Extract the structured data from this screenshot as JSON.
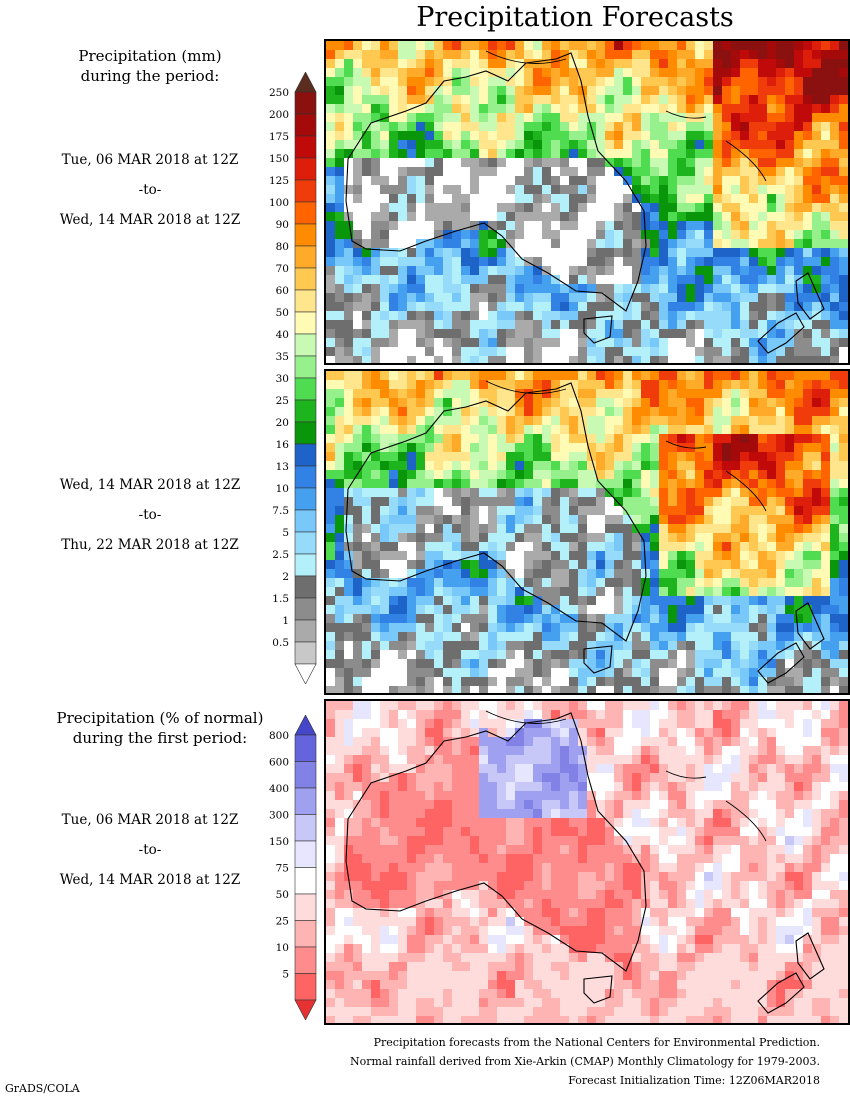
{
  "title": "Precipitation Forecasts",
  "legend_mm": {
    "heading_line1": "Precipitation (mm)",
    "heading_line2": "during the period:",
    "levels": [
      "250",
      "200",
      "175",
      "150",
      "125",
      "100",
      "90",
      "80",
      "70",
      "60",
      "50",
      "40",
      "35",
      "30",
      "25",
      "20",
      "16",
      "13",
      "10",
      "7.5",
      "5",
      "2.5",
      "2",
      "1.5",
      "1",
      "0.5"
    ],
    "colors": [
      "#8b1010",
      "#a50a0a",
      "#c00a0a",
      "#dc1e0a",
      "#f03c0a",
      "#ff6400",
      "#ff8c00",
      "#ffaa28",
      "#ffc850",
      "#ffe68c",
      "#fffab4",
      "#c8fab4",
      "#96f08c",
      "#50dc50",
      "#1eb41e",
      "#0a960a",
      "#1e64c8",
      "#3282e6",
      "#46a0f0",
      "#78c8fa",
      "#96dcfa",
      "#b4f0fa",
      "#6e6e6e",
      "#8c8c8c",
      "#aaaaaa",
      "#c8c8c8"
    ],
    "top_color": "#5a2d1e",
    "bottom_color": "#ffffff"
  },
  "period1": {
    "start": "Tue, 06 MAR 2018 at 12Z",
    "sep": "-to-",
    "end": "Wed, 14 MAR 2018 at 12Z"
  },
  "period2": {
    "start": "Wed, 14 MAR 2018 at 12Z",
    "sep": "-to-",
    "end": "Thu, 22 MAR 2018 at 12Z"
  },
  "legend_pct": {
    "heading_line1": "Precipitation (% of normal)",
    "heading_line2": "during the first period:",
    "levels": [
      "800",
      "600",
      "400",
      "300",
      "150",
      "75",
      "50",
      "25",
      "10",
      "5"
    ],
    "colors": [
      "#6464dc",
      "#8282e6",
      "#a0a0f0",
      "#c8c8f8",
      "#e6e6ff",
      "#ffffff",
      "#ffdcdc",
      "#ffb4b4",
      "#ff8c8c",
      "#ff6464"
    ],
    "top_color": "#4646c8",
    "bottom_color": "#e63232"
  },
  "period3": {
    "start": "Tue, 06 MAR 2018 at 12Z",
    "sep": "-to-",
    "end": "Wed, 14 MAR 2018 at 12Z"
  },
  "footer": {
    "line1": "Precipitation forecasts from the National Centers for Environmental Prediction.",
    "line2": "Normal rainfall derived from Xie-Arkin (CMAP) Monthly Climatology for 1979-2003.",
    "line3": "Forecast Initialization Time: 12Z06MAR2018"
  },
  "credit": "GrADS/COLA"
}
